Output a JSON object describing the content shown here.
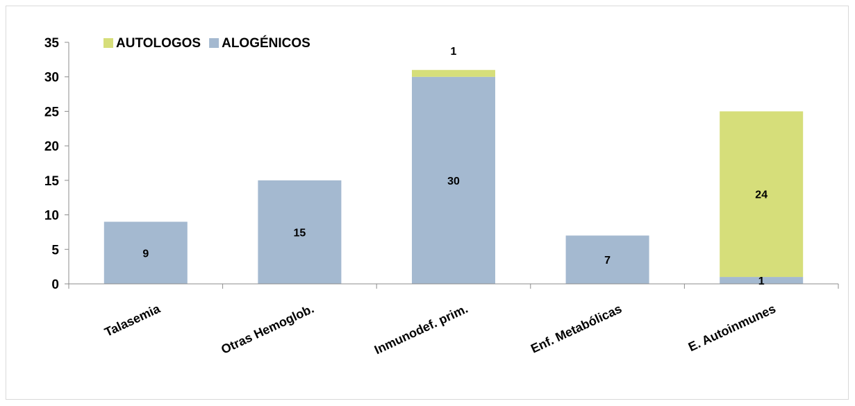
{
  "chart_data": {
    "type": "bar",
    "stacked": true,
    "categories": [
      "Talasemia",
      "Otras Hemoglob.",
      "Inmunodef. prim.",
      "Enf. Metabólicas",
      "E. Autoinmunes"
    ],
    "series": [
      {
        "name": "ALOGÉNICOS",
        "values": [
          9,
          15,
          30,
          7,
          1
        ],
        "color": "#a4b9d0"
      },
      {
        "name": "AUTOLOGOS",
        "values": [
          0,
          0,
          1,
          0,
          24
        ],
        "color": "#d6de7a"
      }
    ],
    "data_labels": [
      {
        "category": "Talasemia",
        "series": "ALOGÉNICOS",
        "text": "9"
      },
      {
        "category": "Otras Hemoglob.",
        "series": "ALOGÉNICOS",
        "text": "15"
      },
      {
        "category": "Inmunodef. prim.",
        "series": "ALOGÉNICOS",
        "text": "30"
      },
      {
        "category": "Inmunodef. prim.",
        "series": "AUTOLOGOS",
        "text": "1"
      },
      {
        "category": "Enf. Metabólicas",
        "series": "ALOGÉNICOS",
        "text": "7"
      },
      {
        "category": "E. Autoinmunes",
        "series": "ALOGÉNICOS",
        "text": "1"
      },
      {
        "category": "E. Autoinmunes",
        "series": "AUTOLOGOS",
        "text": "24"
      }
    ],
    "title": "",
    "xlabel": "",
    "ylabel": "",
    "ylim": [
      0,
      35
    ],
    "yticks": [
      "0",
      "5",
      "10",
      "15",
      "20",
      "25",
      "30",
      "35"
    ],
    "grid": false,
    "legend_position": "top-left",
    "legend_order": [
      "AUTOLOGOS",
      "ALOGÉNICOS"
    ]
  }
}
